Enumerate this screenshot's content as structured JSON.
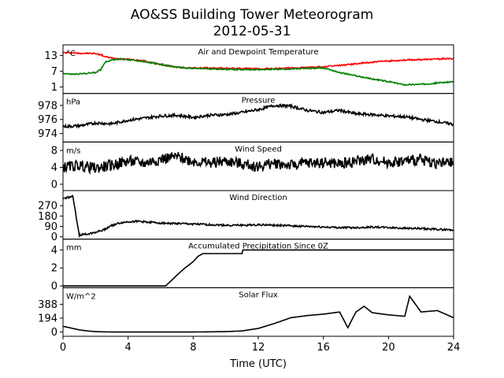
{
  "title": "AO&SS Building Tower Meteorogram",
  "subtitle": "2012-05-31",
  "xlabel": "Time (UTC)",
  "x_ticks": [
    0,
    4,
    8,
    12,
    16,
    20,
    24
  ],
  "colors": {
    "temperature": "#ff0000",
    "dewpoint": "#008000",
    "black": "#000000"
  },
  "chart_data": [
    {
      "type": "line",
      "title": "Air and Dewpoint Temperature",
      "unit": "°C",
      "ylim": [
        -1.5,
        17
      ],
      "yticks": [
        1,
        7,
        13
      ],
      "x": [
        0,
        0.5,
        1,
        1.5,
        2,
        2.3,
        2.6,
        3,
        3.5,
        4,
        4.5,
        5,
        5.5,
        6,
        6.5,
        7,
        7.5,
        8,
        9,
        10,
        11,
        12,
        13,
        14,
        15,
        16,
        17,
        18,
        19,
        20,
        21,
        22,
        23,
        24
      ],
      "series": [
        {
          "values": [
            14,
            14,
            13.8,
            13.8,
            13.7,
            13.3,
            12.5,
            12,
            11.7,
            11.5,
            11.2,
            10.8,
            10.2,
            9.6,
            9.0,
            8.5,
            8.3,
            8.2,
            8.2,
            8.1,
            8.0,
            7.9,
            8.0,
            8.2,
            8.4,
            8.6,
            9.2,
            9.8,
            10.4,
            10.9,
            11.2,
            11.4,
            11.6,
            11.8
          ]
        },
        {
          "values": [
            6.2,
            5.8,
            5.9,
            6.2,
            6.5,
            7.5,
            10.5,
            11.3,
            11.6,
            11.4,
            11.0,
            10.6,
            10.1,
            9.5,
            9.0,
            8.5,
            8.2,
            8.0,
            7.9,
            7.7,
            7.6,
            7.6,
            7.7,
            7.8,
            8.0,
            8.3,
            6.5,
            5.2,
            4.0,
            3.0,
            1.8,
            2.0,
            2.5,
            3.0
          ]
        }
      ]
    },
    {
      "type": "line",
      "title": "Pressure",
      "unit": "hPa",
      "ylim": [
        972.8,
        979.7
      ],
      "yticks": [
        974,
        976,
        978
      ],
      "x": [
        0,
        1,
        2,
        3,
        4,
        5,
        6,
        7,
        8,
        9,
        10,
        11,
        12,
        13,
        14,
        15,
        16,
        17,
        18,
        19,
        20,
        21,
        22,
        23,
        24
      ],
      "series": [
        {
          "values": [
            975,
            975.1,
            975.5,
            975.4,
            975.9,
            976.2,
            976.5,
            976.6,
            976.3,
            976.6,
            976.7,
            977,
            977.4,
            978,
            977.9,
            977.3,
            977,
            977.3,
            976.8,
            976.7,
            976.5,
            976.4,
            976,
            975.7,
            975.3
          ]
        }
      ]
    },
    {
      "type": "line",
      "title": "Wind Speed",
      "unit": "m/s",
      "ylim": [
        -1.5,
        10
      ],
      "yticks": [
        0,
        4,
        8
      ],
      "x": [
        0,
        1,
        2,
        3,
        4,
        5,
        6,
        7,
        8,
        9,
        10,
        11,
        12,
        13,
        14,
        15,
        16,
        17,
        18,
        19,
        20,
        21,
        22,
        23,
        24
      ],
      "series": [
        {
          "values": [
            4,
            4.5,
            3.8,
            4.5,
            5.5,
            5.0,
            6.0,
            6.5,
            5.5,
            5.0,
            5.5,
            4.8,
            4.2,
            5.0,
            4.5,
            5.0,
            5.2,
            4.8,
            5.5,
            6.0,
            5.2,
            5.5,
            5.8,
            5.0,
            5.0
          ]
        }
      ]
    },
    {
      "type": "line",
      "title": "Wind Direction",
      "unit": "°",
      "ylim": [
        -20,
        400
      ],
      "yticks": [
        0,
        90,
        180,
        270
      ],
      "x": [
        0,
        0.3,
        0.6,
        1,
        1.5,
        2,
        2.5,
        3,
        3.5,
        4,
        4.5,
        5,
        6,
        7,
        8,
        9,
        10,
        11,
        12,
        13,
        14,
        15,
        16,
        17,
        18,
        19,
        20,
        21,
        22,
        23,
        24
      ],
      "series": [
        {
          "values": [
            330,
            340,
            350,
            15,
            25,
            40,
            60,
            100,
            120,
            130,
            135,
            130,
            120,
            115,
            110,
            105,
            100,
            100,
            105,
            100,
            95,
            90,
            85,
            80,
            80,
            85,
            80,
            75,
            70,
            65,
            60
          ]
        }
      ]
    },
    {
      "type": "line",
      "title": "Accumulated Precipitation Since 0Z",
      "unit": "mm",
      "ylim": [
        -0.2,
        5.2
      ],
      "yticks": [
        0,
        2,
        4
      ],
      "x": [
        0,
        6.3,
        6.6,
        7,
        7.5,
        8,
        8.3,
        8.6,
        9,
        10,
        11,
        11.05,
        24
      ],
      "series": [
        {
          "values": [
            0,
            0,
            0.5,
            1.2,
            2,
            2.7,
            3.3,
            3.6,
            3.6,
            3.6,
            3.6,
            4.0,
            4.0
          ]
        }
      ]
    },
    {
      "type": "line",
      "title": "Solar Flux",
      "unit": "W/m^2",
      "ylim": [
        -60,
        620
      ],
      "yticks": [
        0,
        194,
        388
      ],
      "x": [
        0,
        0.5,
        1,
        1.5,
        2,
        3,
        4,
        6,
        8,
        10,
        11,
        12,
        13,
        14,
        15,
        16,
        17,
        17.5,
        18,
        18.5,
        19,
        20,
        21,
        21.3,
        22,
        23,
        24
      ],
      "series": [
        {
          "values": [
            80,
            55,
            30,
            15,
            5,
            0,
            0,
            0,
            0,
            5,
            15,
            50,
            120,
            200,
            230,
            250,
            280,
            60,
            280,
            360,
            270,
            240,
            220,
            500,
            280,
            300,
            200
          ]
        }
      ]
    }
  ]
}
